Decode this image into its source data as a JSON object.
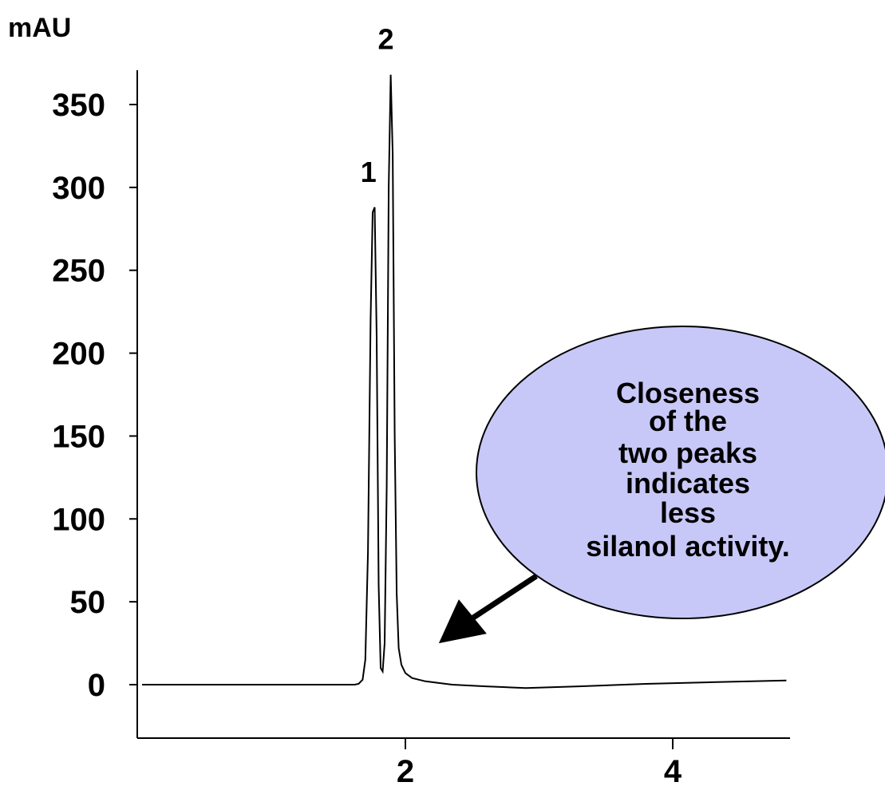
{
  "chart_data": {
    "type": "line",
    "ylabel": "mAU",
    "xlabel": "",
    "title": "",
    "xlim": [
      0,
      4.9
    ],
    "ylim": [
      -30,
      372
    ],
    "x_ticks": [
      2,
      4
    ],
    "y_ticks": [
      0,
      50,
      100,
      150,
      200,
      250,
      300,
      350
    ],
    "grid": false,
    "series": [
      {
        "x": [
          0.03,
          1.5,
          1.62,
          1.65,
          1.68,
          1.7,
          1.72,
          1.74,
          1.755,
          1.77,
          1.785,
          1.8,
          1.815,
          1.83,
          1.845,
          1.86,
          1.875,
          1.89,
          1.905,
          1.92,
          1.935,
          1.95,
          1.97,
          2.0,
          2.05,
          2.15,
          2.35,
          2.6,
          2.9,
          3.3,
          3.8,
          4.3,
          4.85
        ],
        "y": [
          0,
          0,
          0,
          0.5,
          3,
          15,
          80,
          220,
          285,
          288,
          210,
          60,
          10,
          8,
          25,
          120,
          300,
          368,
          320,
          150,
          55,
          22,
          12,
          7,
          4,
          2,
          0,
          -1,
          -2,
          -1,
          0.5,
          1.5,
          2.5
        ]
      }
    ],
    "peak_labels": [
      {
        "label": "1",
        "x": 1.76,
        "y": 288
      },
      {
        "label": "2",
        "x": 1.89,
        "y": 368
      }
    ],
    "annotation": {
      "lines": [
        "Closeness",
        "of the",
        "two peaks",
        "indicates",
        "less",
        "silanol activity."
      ],
      "fill_color": "#c8c8f8",
      "arrow_target": {
        "x": 2.25,
        "y": 25
      }
    }
  }
}
